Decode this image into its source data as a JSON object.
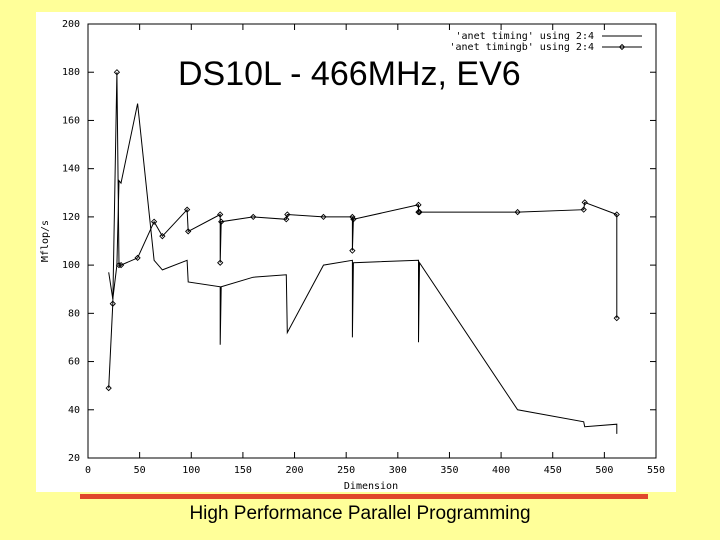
{
  "footer_text": "High Performance Parallel Programming",
  "colors": {
    "background": "#ffff99",
    "plot_bg": "#ffffff",
    "rule": "#e0482c",
    "ink": "#000000"
  },
  "chart_data": {
    "type": "line",
    "title": "DS10L - 466MHz, EV6",
    "xlabel": "Dimension",
    "ylabel": "Mflop/s",
    "xlim": [
      0,
      550
    ],
    "ylim": [
      20,
      200
    ],
    "xticks": [
      0,
      50,
      100,
      150,
      200,
      250,
      300,
      350,
      400,
      450,
      500,
      550
    ],
    "yticks": [
      20,
      40,
      60,
      80,
      100,
      120,
      140,
      160,
      180,
      200
    ],
    "grid": false,
    "legend_position": "top-right",
    "series": [
      {
        "name": "'anet timing' using 2:4",
        "marker": "none",
        "x": [
          20,
          24,
          28,
          30,
          32,
          48,
          64,
          72,
          96,
          97,
          128,
          128,
          129,
          160,
          192,
          193,
          228,
          256,
          256,
          257,
          320,
          320,
          321,
          416,
          480,
          481,
          512,
          512
        ],
        "y": [
          97,
          86,
          100,
          135,
          134,
          167,
          102,
          98,
          102,
          93,
          91,
          67,
          91,
          95,
          96,
          72,
          100,
          102,
          70,
          101,
          102,
          68,
          101,
          40,
          35,
          33,
          34,
          30
        ]
      },
      {
        "name": "'anet timingb' using 2:4",
        "marker": "diamond",
        "x": [
          20,
          24,
          28,
          30,
          32,
          48,
          64,
          72,
          96,
          97,
          128,
          128,
          129,
          160,
          192,
          193,
          228,
          256,
          256,
          257,
          320,
          320,
          321,
          416,
          480,
          481,
          512,
          512
        ],
        "y": [
          49,
          84,
          180,
          100,
          100,
          103,
          118,
          112,
          123,
          114,
          121,
          101,
          118,
          120,
          119,
          121,
          120,
          120,
          106,
          119,
          125,
          122,
          122,
          122,
          123,
          126,
          121,
          78
        ]
      }
    ]
  }
}
